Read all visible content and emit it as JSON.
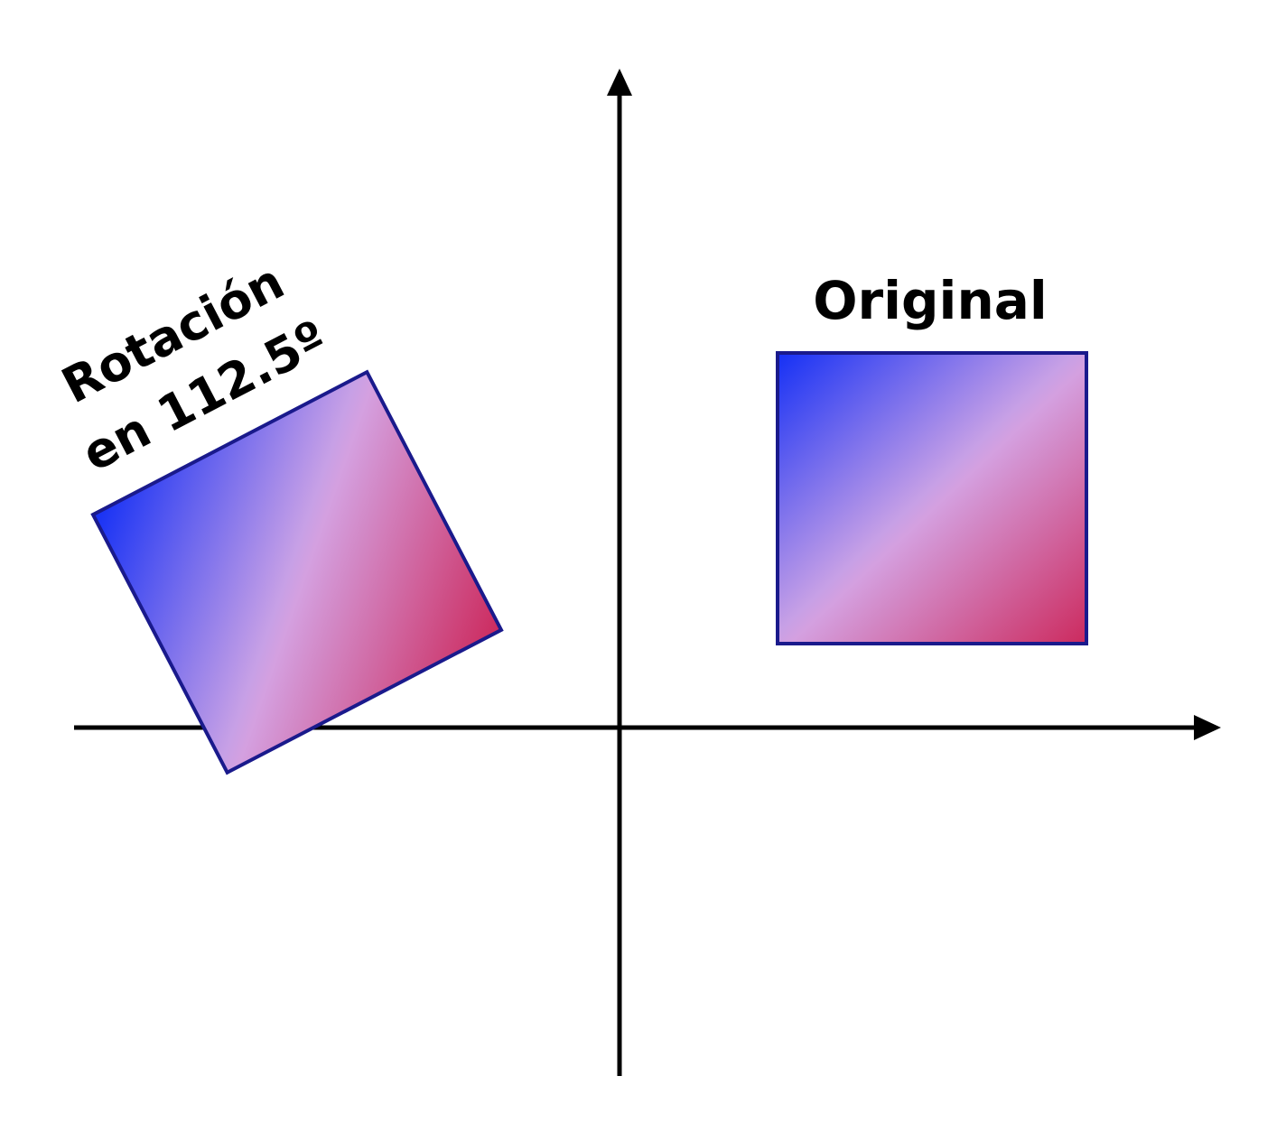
{
  "labels": {
    "original": "Original",
    "rotated_line1": "Rotación",
    "rotated_line2": "en 112.5º"
  },
  "colors": {
    "axis": "#000000",
    "square_stroke": "#1a1a8c",
    "gradient_start": "#1530f5",
    "gradient_mid": "#d4a0e0",
    "gradient_end": "#cc2a5e"
  }
}
